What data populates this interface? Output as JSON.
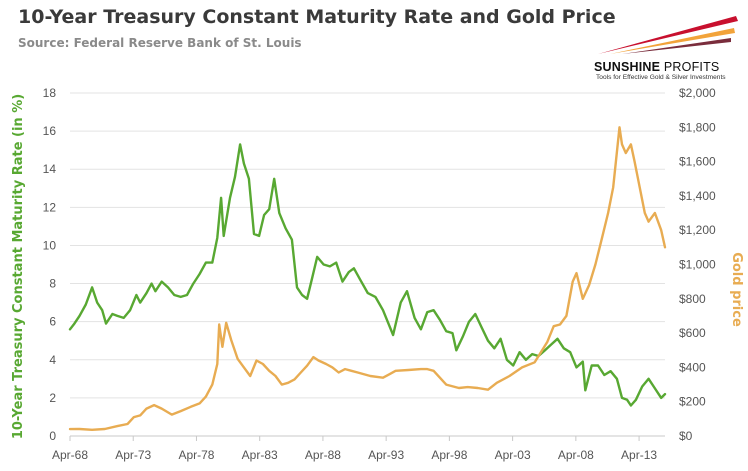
{
  "header": {
    "title": "10-Year Treasury Constant Maturity Rate and Gold Price",
    "subtitle": "Source: Federal Reserve Bank of St. Louis"
  },
  "logo": {
    "name_bold": "SUNSHINE",
    "name_light": " PROFITS",
    "tagline": "Tools for Effective Gold & Silver Investments",
    "colors": [
      "#c8102e",
      "#f2a33a",
      "#7a2d3c"
    ]
  },
  "chart_data": {
    "type": "line",
    "title": "10-Year Treasury Constant Maturity Rate and Gold Price",
    "subtitle": "Source: Federal Reserve Bank of St. Louis",
    "xlabel": "",
    "x_tick_labels": [
      "Apr-68",
      "Apr-73",
      "Apr-78",
      "Apr-83",
      "Apr-88",
      "Apr-93",
      "Apr-98",
      "Apr-03",
      "Apr-08",
      "Apr-13"
    ],
    "x_range": [
      1968.25,
      2015.3
    ],
    "y_left": {
      "label": "10-Year Treasury Constant Maturity Rate (in %)",
      "ticks": [
        0,
        2,
        4,
        6,
        8,
        10,
        12,
        14,
        16,
        18
      ],
      "range": [
        0,
        18
      ]
    },
    "y_right": {
      "label": "Gold price",
      "ticks": [
        "$0",
        "$200",
        "$400",
        "$600",
        "$800",
        "$1,000",
        "$1,200",
        "$1,400",
        "$1,600",
        "$1,800",
        "$2,000"
      ],
      "range": [
        0,
        2000
      ]
    },
    "grid": true,
    "series": [
      {
        "axis": "left",
        "color": "#58a832",
        "x": [
          1968.25,
          1968.6,
          1969.0,
          1969.5,
          1970.0,
          1970.4,
          1970.8,
          1971.1,
          1971.6,
          1972.0,
          1972.5,
          1973.0,
          1973.5,
          1973.8,
          1974.3,
          1974.7,
          1975.0,
          1975.5,
          1976.0,
          1976.5,
          1977.0,
          1977.5,
          1978.0,
          1978.5,
          1979.0,
          1979.5,
          1979.9,
          1980.2,
          1980.4,
          1980.9,
          1981.3,
          1981.7,
          1982.0,
          1982.4,
          1982.8,
          1983.2,
          1983.6,
          1984.0,
          1984.4,
          1984.8,
          1985.3,
          1985.8,
          1986.2,
          1986.6,
          1987.0,
          1987.4,
          1987.8,
          1988.3,
          1988.8,
          1989.3,
          1989.8,
          1990.3,
          1990.7,
          1991.2,
          1991.8,
          1992.4,
          1993.0,
          1993.8,
          1994.4,
          1994.9,
          1995.5,
          1996.0,
          1996.5,
          1997.0,
          1997.5,
          1998.0,
          1998.5,
          1998.8,
          1999.3,
          1999.8,
          2000.3,
          2000.8,
          2001.3,
          2001.8,
          2002.3,
          2002.8,
          2003.3,
          2003.8,
          2004.3,
          2004.8,
          2005.3,
          2005.8,
          2006.3,
          2006.8,
          2007.3,
          2007.8,
          2008.3,
          2008.8,
          2009.0,
          2009.5,
          2010.0,
          2010.5,
          2011.0,
          2011.5,
          2011.9,
          2012.3,
          2012.6,
          2013.0,
          2013.5,
          2014.0,
          2014.5,
          2015.0,
          2015.3
        ],
        "y": [
          5.6,
          5.9,
          6.3,
          6.9,
          7.8,
          7.0,
          6.6,
          5.9,
          6.4,
          6.3,
          6.2,
          6.6,
          7.4,
          7.0,
          7.5,
          8.0,
          7.6,
          8.1,
          7.8,
          7.4,
          7.3,
          7.4,
          8.0,
          8.5,
          9.1,
          9.1,
          10.4,
          12.5,
          10.5,
          12.5,
          13.6,
          15.3,
          14.3,
          13.5,
          10.6,
          10.5,
          11.6,
          11.9,
          13.5,
          11.7,
          10.9,
          10.3,
          7.8,
          7.4,
          7.2,
          8.3,
          9.4,
          9.0,
          8.9,
          9.1,
          8.1,
          8.6,
          8.8,
          8.2,
          7.5,
          7.3,
          6.6,
          5.3,
          7.0,
          7.6,
          6.2,
          5.6,
          6.5,
          6.6,
          6.1,
          5.5,
          5.4,
          4.5,
          5.2,
          6.0,
          6.4,
          5.7,
          5.0,
          4.6,
          5.1,
          4.0,
          3.7,
          4.4,
          4.0,
          4.3,
          4.2,
          4.5,
          4.8,
          5.1,
          4.6,
          4.4,
          3.6,
          3.9,
          2.4,
          3.7,
          3.7,
          3.2,
          3.4,
          3.0,
          2.0,
          1.9,
          1.6,
          1.9,
          2.6,
          3.0,
          2.5,
          2.0,
          2.2
        ]
      },
      {
        "axis": "right",
        "color": "#e8ac52",
        "x": [
          1968.25,
          1969.0,
          1970.0,
          1971.0,
          1972.0,
          1972.8,
          1973.3,
          1973.8,
          1974.3,
          1974.9,
          1975.5,
          1976.3,
          1977.0,
          1977.8,
          1978.5,
          1979.0,
          1979.5,
          1979.9,
          1980.05,
          1980.3,
          1980.6,
          1981.0,
          1981.5,
          1982.0,
          1982.5,
          1983.0,
          1983.5,
          1984.0,
          1984.5,
          1985.0,
          1985.5,
          1986.0,
          1986.5,
          1987.0,
          1987.5,
          1987.9,
          1988.5,
          1989.0,
          1989.5,
          1990.0,
          1990.5,
          1991.0,
          1992.0,
          1993.0,
          1993.5,
          1994.0,
          1995.0,
          1996.0,
          1996.5,
          1997.0,
          1997.5,
          1998.0,
          1999.0,
          1999.7,
          2000.5,
          2001.3,
          2002.0,
          2003.0,
          2004.0,
          2005.0,
          2006.0,
          2006.5,
          2007.0,
          2007.5,
          2008.0,
          2008.3,
          2008.8,
          2009.3,
          2009.8,
          2010.3,
          2010.8,
          2011.2,
          2011.7,
          2011.9,
          2012.2,
          2012.6,
          2012.9,
          2013.3,
          2013.7,
          2014.0,
          2014.5,
          2015.0,
          2015.3
        ],
        "y": [
          40,
          41,
          36,
          41,
          58,
          70,
          110,
          120,
          160,
          180,
          160,
          125,
          145,
          170,
          190,
          230,
          300,
          420,
          650,
          520,
          660,
          560,
          450,
          400,
          350,
          440,
          420,
          380,
          350,
          300,
          310,
          330,
          370,
          410,
          460,
          440,
          420,
          400,
          370,
          390,
          380,
          370,
          350,
          340,
          360,
          380,
          385,
          390,
          390,
          380,
          340,
          300,
          280,
          285,
          280,
          270,
          310,
          350,
          400,
          430,
          550,
          640,
          650,
          700,
          900,
          950,
          800,
          880,
          1000,
          1150,
          1300,
          1450,
          1800,
          1700,
          1650,
          1700,
          1600,
          1450,
          1300,
          1250,
          1300,
          1200,
          1100
        ]
      }
    ]
  }
}
